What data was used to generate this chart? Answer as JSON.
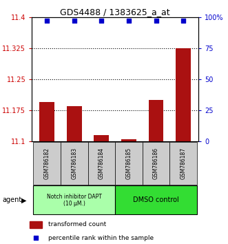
{
  "title": "GDS4488 / 1383625_a_at",
  "categories": [
    "GSM786182",
    "GSM786183",
    "GSM786184",
    "GSM786185",
    "GSM786186",
    "GSM786187"
  ],
  "bar_values": [
    11.195,
    11.185,
    11.115,
    11.105,
    11.2,
    11.325
  ],
  "bar_bottom": 11.1,
  "bar_color": "#aa1111",
  "dot_y": 97,
  "dot_color": "#0000cc",
  "ylim_left": [
    11.1,
    11.4
  ],
  "yticks_left": [
    11.1,
    11.175,
    11.25,
    11.325,
    11.4
  ],
  "ylim_right": [
    0,
    100
  ],
  "yticks_right": [
    0,
    25,
    50,
    75,
    100
  ],
  "ytick_labels_left": [
    "11.1",
    "11.175",
    "11.25",
    "11.325",
    "11.4"
  ],
  "ytick_labels_right": [
    "0",
    "25",
    "50",
    "75",
    "100%"
  ],
  "hlines": [
    11.175,
    11.25,
    11.325
  ],
  "group1_label": "Notch inhibitor DAPT\n(10 μM.)",
  "group1_color": "#aaffaa",
  "group2_label": "DMSO control",
  "group2_color": "#33dd33",
  "agent_label": "agent",
  "legend_bar_label": "transformed count",
  "legend_dot_label": "percentile rank within the sample",
  "left_tick_color": "#cc0000",
  "right_tick_color": "#0000cc",
  "bar_width": 0.55,
  "xlim": [
    -0.55,
    5.55
  ]
}
